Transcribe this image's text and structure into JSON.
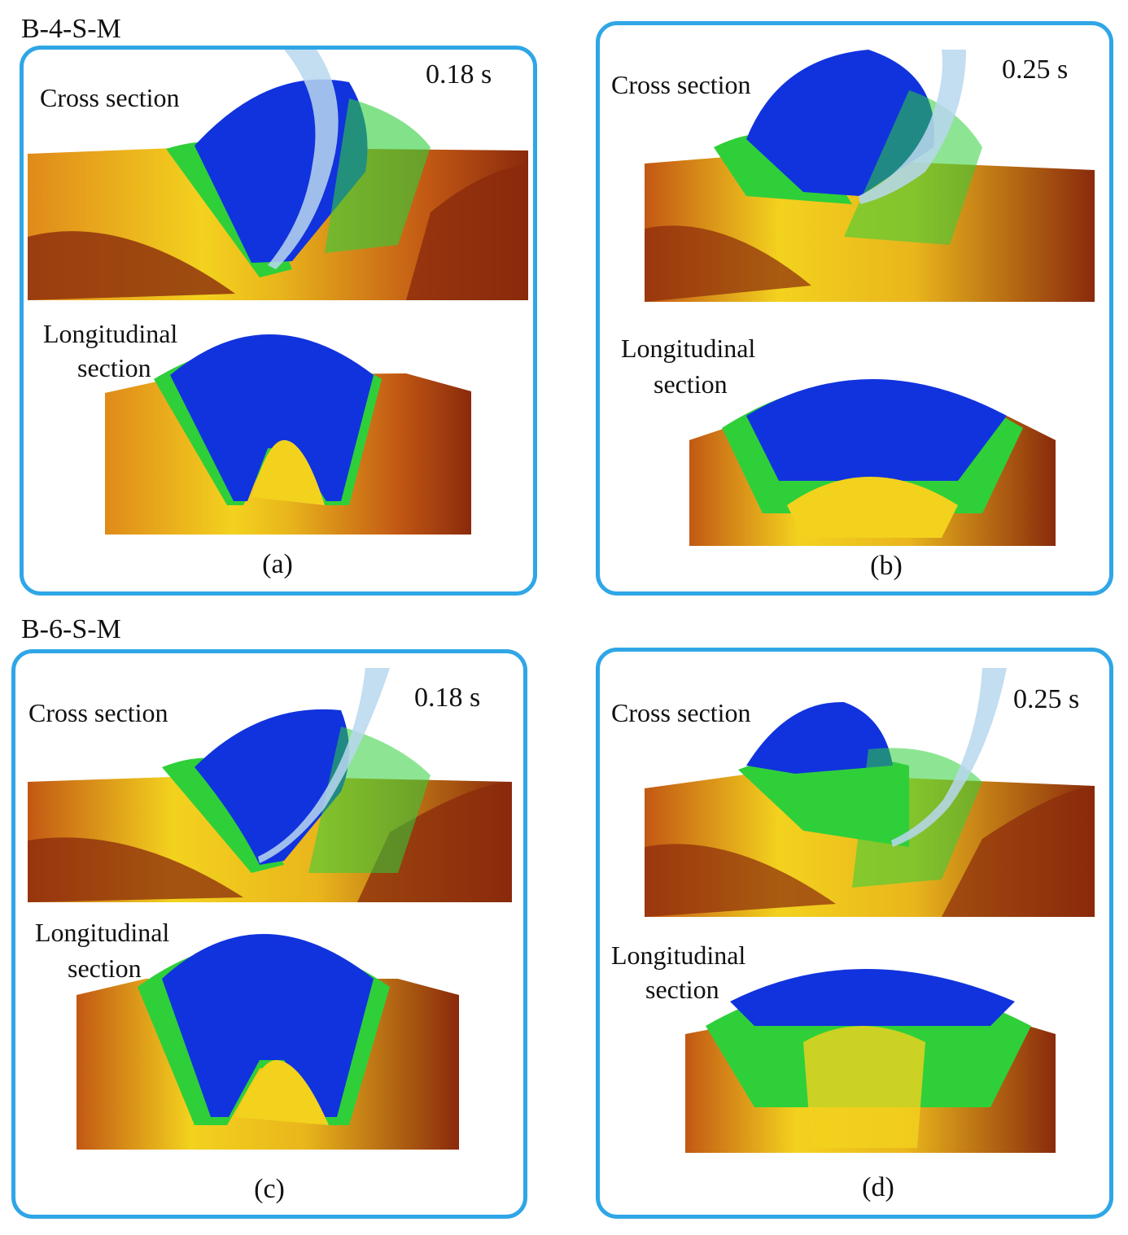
{
  "groups": [
    {
      "label": "B-4-S-M"
    },
    {
      "label": "B-6-S-M"
    }
  ],
  "panels": [
    {
      "letter": "(a)",
      "time": "0.18 s",
      "cross_label": "Cross section",
      "long_label_1": "Longitudinal",
      "long_label_2": "section"
    },
    {
      "letter": "(b)",
      "time": "0.25 s",
      "cross_label": "Cross section",
      "long_label_1": "Longitudinal",
      "long_label_2": "section"
    },
    {
      "letter": "(c)",
      "time": "0.18 s",
      "cross_label": "Cross section",
      "long_label_1": "Longitudinal",
      "long_label_2": "section"
    },
    {
      "letter": "(d)",
      "time": "0.25 s",
      "cross_label": "Cross section",
      "long_label_1": "Longitudinal",
      "long_label_2": "section"
    }
  ],
  "colors": {
    "frame": "#2fa6e6",
    "blue": "#1133dd",
    "green": "#2fcf3a",
    "yellow": "#f3d21e",
    "orange": "#e08a1a",
    "dark": "#8a2a0c",
    "tool": "#b9d7ee"
  }
}
